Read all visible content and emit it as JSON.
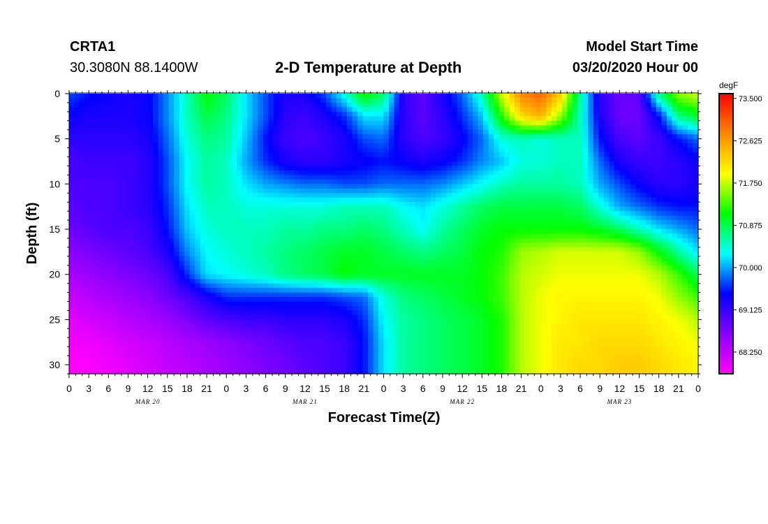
{
  "header": {
    "station": "CRTA1",
    "coords": "30.3080N 88.1400W",
    "title": "2-D Temperature at Depth",
    "model_start_label": "Model Start Time",
    "model_start_value": "03/20/2020 Hour 00"
  },
  "chart_data": {
    "type": "heatmap",
    "title": "2-D Temperature at Depth",
    "xlabel": "Forecast Time(Z)",
    "ylabel": "Depth (ft)",
    "colorbar_label": "degF",
    "x_hours": [
      0,
      3,
      6,
      9,
      12,
      15,
      18,
      21,
      24,
      27,
      30,
      33,
      36,
      39,
      42,
      45,
      48,
      51,
      54,
      57,
      60,
      63,
      66,
      69,
      72,
      75,
      78,
      81,
      84,
      87,
      90,
      93,
      96
    ],
    "x_tick_labels": [
      "0",
      "3",
      "6",
      "9",
      "12",
      "15",
      "18",
      "21",
      "0",
      "3",
      "6",
      "9",
      "12",
      "15",
      "18",
      "21",
      "0",
      "3",
      "6",
      "9",
      "12",
      "15",
      "18",
      "21",
      "0",
      "3",
      "6",
      "9",
      "12",
      "15",
      "18",
      "21",
      "0"
    ],
    "date_labels": [
      {
        "label": "MAR 20",
        "hour": 12
      },
      {
        "label": "MAR 21",
        "hour": 36
      },
      {
        "label": "MAR 22",
        "hour": 60
      },
      {
        "label": "MAR 23",
        "hour": 84
      }
    ],
    "xlim": [
      0,
      96
    ],
    "ylim": [
      0,
      31
    ],
    "y_inverted": true,
    "y_ticks": [
      0,
      5,
      10,
      15,
      20,
      25,
      30
    ],
    "depths": [
      0,
      2.5,
      5,
      7.5,
      10,
      12.5,
      15,
      17.5,
      20,
      22.5,
      25,
      27.5,
      30
    ],
    "zlim": [
      67.8,
      73.6
    ],
    "colorbar_ticks": [
      "73.500",
      "72.625",
      "71.750",
      "70.875",
      "70.000",
      "69.125",
      "68.250"
    ],
    "colorbar_values": [
      73.5,
      72.625,
      71.75,
      70.875,
      70.0,
      69.125,
      68.25
    ],
    "colormap": [
      "#ff00ff",
      "#8800ff",
      "#0000ff",
      "#00ffff",
      "#00ff00",
      "#ffff00",
      "#ff8800",
      "#ff0000"
    ],
    "values": [
      [
        69.7,
        69.5,
        69.4,
        69.3,
        69.4,
        69.9,
        70.5,
        71.1,
        70.8,
        70.2,
        69.7,
        69.3,
        69.3,
        69.7,
        70.4,
        71.2,
        70.8,
        69.2,
        68.9,
        69.3,
        69.8,
        70.5,
        71.8,
        72.8,
        73.0,
        72.3,
        70.6,
        69.2,
        68.8,
        68.9,
        70.7,
        71.6,
        71.8
      ],
      [
        69.4,
        69.3,
        69.3,
        69.3,
        69.4,
        69.9,
        70.5,
        70.9,
        70.7,
        70.2,
        69.7,
        69.2,
        69.1,
        69.3,
        69.6,
        70.2,
        70.2,
        69.2,
        68.9,
        69.2,
        69.6,
        70.1,
        71.2,
        72.2,
        72.5,
        71.6,
        70.5,
        69.3,
        68.8,
        68.8,
        69.5,
        70.7,
        71.0
      ],
      [
        69.2,
        69.2,
        69.2,
        69.2,
        69.3,
        69.8,
        70.4,
        70.7,
        70.6,
        70.1,
        69.5,
        69.1,
        69.0,
        69.1,
        69.3,
        69.7,
        69.8,
        69.2,
        69.0,
        69.1,
        69.4,
        69.8,
        70.4,
        70.5,
        70.4,
        70.5,
        70.5,
        69.5,
        69.0,
        68.9,
        69.1,
        69.5,
        69.8
      ],
      [
        69.0,
        69.1,
        69.1,
        69.1,
        69.2,
        69.7,
        70.3,
        70.6,
        70.5,
        70.0,
        69.6,
        69.3,
        69.2,
        69.2,
        69.3,
        69.4,
        69.5,
        69.4,
        69.3,
        69.4,
        69.6,
        69.9,
        70.1,
        70.4,
        70.4,
        70.5,
        70.5,
        69.8,
        69.3,
        69.1,
        69.1,
        69.2,
        69.4
      ],
      [
        69.0,
        69.0,
        69.0,
        69.1,
        69.2,
        69.7,
        70.3,
        70.6,
        70.5,
        70.2,
        70.0,
        69.9,
        69.8,
        69.8,
        69.7,
        69.7,
        69.8,
        69.8,
        69.8,
        69.9,
        70.1,
        70.3,
        70.5,
        70.6,
        70.6,
        70.6,
        70.5,
        70.0,
        69.7,
        69.4,
        69.2,
        69.2,
        69.3
      ],
      [
        68.9,
        69.0,
        69.0,
        69.1,
        69.2,
        69.6,
        70.2,
        70.5,
        70.5,
        70.4,
        70.4,
        70.4,
        70.4,
        70.4,
        70.5,
        70.5,
        70.5,
        70.3,
        70.2,
        70.4,
        70.6,
        70.8,
        70.9,
        70.9,
        70.9,
        70.9,
        70.8,
        70.4,
        70.0,
        69.8,
        69.6,
        69.5,
        69.5
      ],
      [
        68.8,
        68.9,
        69.0,
        69.0,
        69.1,
        69.5,
        70.1,
        70.4,
        70.5,
        70.5,
        70.5,
        70.6,
        70.6,
        70.7,
        70.7,
        70.8,
        70.7,
        70.5,
        70.3,
        70.6,
        70.8,
        71.0,
        71.1,
        71.1,
        71.1,
        71.1,
        71.1,
        71.0,
        70.8,
        70.5,
        70.2,
        70.0,
        69.8
      ],
      [
        68.6,
        68.7,
        68.8,
        68.9,
        69.0,
        69.3,
        69.9,
        70.3,
        70.4,
        70.5,
        70.6,
        70.7,
        70.8,
        70.9,
        71.0,
        71.0,
        70.9,
        70.8,
        70.7,
        70.8,
        70.9,
        71.1,
        71.2,
        71.6,
        71.7,
        71.8,
        71.8,
        71.8,
        71.8,
        71.6,
        71.1,
        70.6,
        70.2
      ],
      [
        68.4,
        68.5,
        68.6,
        68.7,
        68.8,
        69.0,
        69.6,
        70.2,
        70.3,
        70.4,
        70.5,
        70.7,
        70.8,
        70.9,
        71.1,
        71.0,
        71.0,
        71.0,
        71.0,
        71.0,
        71.0,
        71.1,
        71.3,
        71.7,
        71.8,
        71.9,
        71.9,
        71.9,
        71.9,
        71.9,
        71.7,
        71.3,
        70.8
      ],
      [
        68.2,
        68.3,
        68.4,
        68.5,
        68.6,
        68.8,
        69.0,
        69.3,
        69.6,
        69.6,
        69.6,
        69.6,
        69.6,
        69.6,
        69.7,
        69.8,
        70.4,
        70.7,
        70.8,
        70.9,
        71.0,
        71.1,
        71.3,
        71.7,
        71.9,
        72.0,
        72.0,
        72.0,
        72.0,
        72.0,
        71.9,
        71.6,
        71.3
      ],
      [
        68.0,
        68.1,
        68.2,
        68.3,
        68.4,
        68.5,
        68.7,
        68.9,
        69.0,
        69.1,
        69.1,
        69.2,
        69.2,
        69.2,
        69.3,
        69.6,
        70.3,
        70.6,
        70.7,
        70.8,
        70.9,
        71.0,
        71.2,
        71.7,
        71.9,
        72.0,
        72.1,
        72.1,
        72.1,
        72.1,
        72.0,
        71.9,
        71.7
      ],
      [
        67.9,
        67.9,
        68.0,
        68.1,
        68.2,
        68.3,
        68.4,
        68.5,
        68.6,
        68.7,
        68.8,
        68.9,
        69.0,
        69.0,
        69.1,
        69.5,
        70.2,
        70.6,
        70.7,
        70.8,
        70.9,
        71.0,
        71.2,
        71.7,
        71.9,
        72.1,
        72.1,
        72.2,
        72.2,
        72.2,
        72.1,
        72.0,
        71.9
      ],
      [
        67.8,
        67.8,
        67.9,
        68.0,
        68.1,
        68.2,
        68.3,
        68.4,
        68.5,
        68.6,
        68.7,
        68.8,
        68.9,
        69.0,
        69.1,
        69.5,
        70.2,
        70.6,
        70.7,
        70.8,
        70.9,
        71.0,
        71.2,
        71.7,
        71.9,
        72.1,
        72.2,
        72.2,
        72.3,
        72.3,
        72.2,
        72.1,
        72.0
      ]
    ]
  }
}
